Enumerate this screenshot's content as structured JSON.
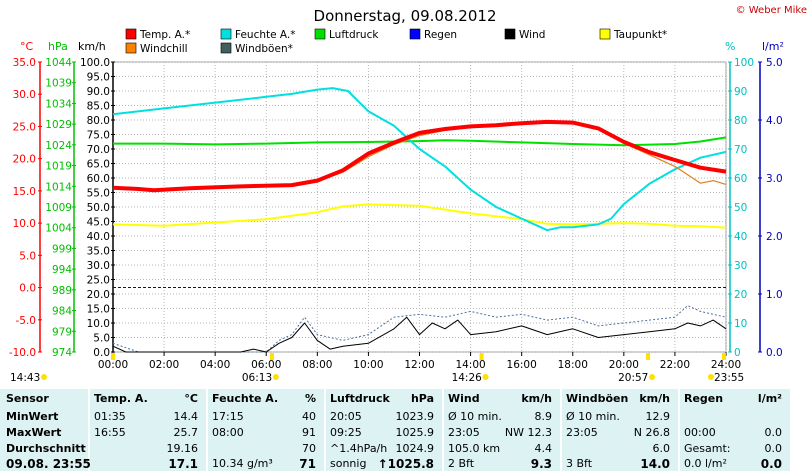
{
  "chart_data": {
    "type": "line",
    "title": "Donnerstag, 09.08.2012",
    "credit": "© Weber Mike",
    "axis_units": {
      "temp": "°C",
      "pressure": "hPa",
      "speed": "km/h",
      "percent": "%",
      "rain": "l/m²"
    },
    "axes": {
      "temp": {
        "range": [
          -10,
          35
        ],
        "ticks": [
          "35.0",
          "30.0",
          "25.0",
          "20.0",
          "15.0",
          "10.0",
          "5.0",
          "0.0",
          "-5.0",
          "-10.0"
        ],
        "color": "#ff0000"
      },
      "pressure": {
        "range": [
          974,
          1044
        ],
        "ticks": [
          "1044",
          "1039",
          "1034",
          "1029",
          "1024",
          "1019",
          "1014",
          "1009",
          "1004",
          "999",
          "994",
          "989",
          "984",
          "979",
          "974"
        ],
        "color": "#00c000"
      },
      "speed": {
        "range": [
          0,
          100
        ],
        "ticks": [
          "100.0",
          "95.0",
          "90.0",
          "85.0",
          "80.0",
          "75.0",
          "70.0",
          "65.0",
          "60.0",
          "55.0",
          "50.0",
          "45.0",
          "40.0",
          "35.0",
          "30.0",
          "25.0",
          "20.0",
          "15.0",
          "10.0",
          "5.0",
          "0.0"
        ],
        "color": "#000000"
      },
      "percent": {
        "range": [
          0,
          100
        ],
        "ticks": [
          "100",
          "90",
          "80",
          "70",
          "60",
          "50",
          "40",
          "30",
          "20",
          "10",
          "0"
        ],
        "color": "#00c0c0"
      },
      "rain": {
        "range": [
          0,
          5
        ],
        "ticks": [
          "5.0",
          "4.0",
          "3.0",
          "2.0",
          "1.0",
          "0.0"
        ],
        "color": "#0000c0"
      }
    },
    "x_ticks": [
      "00:00",
      "02:00",
      "04:00",
      "06:00",
      "08:00",
      "10:00",
      "12:00",
      "14:00",
      "16:00",
      "18:00",
      "20:00",
      "22:00",
      "24:00"
    ],
    "x_range": [
      0,
      24
    ],
    "reference_line": {
      "label": "0 °C",
      "value": 0,
      "color": "#0000c0"
    },
    "markers": [
      {
        "label": "14:43",
        "hour": 0
      },
      {
        "label": "06:13",
        "hour": 6.22
      },
      {
        "label": "14:26",
        "hour": 14.43
      },
      {
        "label": "20:57",
        "hour": 20.95
      },
      {
        "label": "23:55",
        "hour": 23.92
      }
    ],
    "legend": [
      {
        "name": "Temp. A.*",
        "color": "#ff0000"
      },
      {
        "name": "Feuchte A.*",
        "color": "#00e0e0"
      },
      {
        "name": "Luftdruck",
        "color": "#00e000"
      },
      {
        "name": "Regen",
        "color": "#0000ff"
      },
      {
        "name": "Wind",
        "color": "#000000"
      },
      {
        "name": "Taupunkt*",
        "color": "#ffff00"
      },
      {
        "name": "Windchill",
        "color": "#ff8000"
      },
      {
        "name": "Windböen*",
        "color": "#406060"
      }
    ],
    "series": [
      {
        "name": "Temp. A.*",
        "axis": "temp",
        "color": "#ff0000",
        "width": 4,
        "x": [
          0,
          1,
          1.6,
          3,
          5,
          7,
          8,
          9,
          10,
          11,
          12,
          13,
          14,
          15,
          16,
          17,
          18,
          19,
          20,
          21,
          22,
          23,
          24
        ],
        "y": [
          15.5,
          15.3,
          15.1,
          15.4,
          15.7,
          15.9,
          16.6,
          18.2,
          20.8,
          22.5,
          24.0,
          24.6,
          25.0,
          25.2,
          25.5,
          25.7,
          25.6,
          24.7,
          22.6,
          21.0,
          19.8,
          18.6,
          18.0
        ]
      },
      {
        "name": "Windchill",
        "axis": "temp",
        "color": "#e08020",
        "width": 1.2,
        "x": [
          8,
          9,
          10,
          11,
          12,
          13,
          14,
          15,
          16,
          17,
          18,
          19,
          20,
          21,
          22,
          22.5,
          23,
          23.5,
          24
        ],
        "y": [
          16.5,
          17.9,
          20.3,
          22.2,
          23.6,
          24.4,
          24.9,
          25.1,
          25.4,
          25.6,
          25.5,
          24.6,
          22.4,
          20.6,
          18.8,
          17.5,
          16.2,
          16.6,
          16.0
        ]
      },
      {
        "name": "Feuchte A.*",
        "axis": "percent",
        "color": "#00e0e0",
        "width": 2,
        "x": [
          0,
          2,
          4,
          6,
          7,
          8,
          8.6,
          9.2,
          10,
          11,
          12,
          13,
          14,
          15,
          16,
          17,
          17.5,
          18,
          19,
          19.5,
          20,
          21,
          22,
          23,
          24
        ],
        "y": [
          82,
          84,
          86,
          88,
          89,
          90.5,
          91,
          90,
          83,
          78,
          70,
          64,
          56,
          50,
          46,
          42,
          43,
          43,
          44,
          46,
          51,
          58,
          63,
          67,
          69
        ]
      },
      {
        "name": "Luftdruck",
        "axis": "pressure",
        "color": "#00e000",
        "width": 2,
        "x": [
          0,
          2,
          4,
          6,
          8,
          10,
          12,
          13,
          14,
          16,
          18,
          20,
          22,
          23,
          24
        ],
        "y": [
          1024.3,
          1024.3,
          1024.1,
          1024.3,
          1024.6,
          1024.7,
          1024.9,
          1025.1,
          1025.0,
          1024.6,
          1024.2,
          1023.9,
          1024.2,
          1024.8,
          1025.8
        ]
      },
      {
        "name": "Taupunkt*",
        "axis": "temp",
        "color": "#ffff00",
        "width": 2,
        "x": [
          0,
          2,
          4,
          6,
          8,
          9,
          10,
          12,
          14,
          16,
          17,
          18,
          19,
          20,
          21,
          22,
          23,
          24
        ],
        "y": [
          9.8,
          9.6,
          10.1,
          10.6,
          11.7,
          12.6,
          12.9,
          12.7,
          11.5,
          10.6,
          9.9,
          9.8,
          9.9,
          10.0,
          9.9,
          9.6,
          9.5,
          9.3
        ]
      },
      {
        "name": "Wind",
        "axis": "speed",
        "color": "#000000",
        "width": 1,
        "x": [
          0,
          0.5,
          1,
          2,
          3,
          4,
          5,
          5.5,
          6,
          6.5,
          7,
          7.5,
          8,
          8.5,
          9,
          10,
          11,
          11.5,
          12,
          12.5,
          13,
          13.5,
          14,
          15,
          16,
          17,
          18,
          19,
          20,
          21,
          22,
          22.5,
          23,
          23.5,
          24
        ],
        "y": [
          2,
          0,
          0,
          0,
          0,
          0,
          0,
          1,
          0,
          3,
          5,
          10,
          4,
          1,
          2,
          3,
          8,
          12,
          6,
          10,
          8,
          11,
          6,
          7,
          9,
          6,
          8,
          5,
          6,
          7,
          8,
          10,
          9,
          11,
          8
        ]
      },
      {
        "name": "Windböen*",
        "axis": "speed",
        "color": "#5070a0",
        "width": 1,
        "dash": "2,2",
        "x": [
          0,
          1,
          2,
          3,
          4,
          5,
          6,
          6.5,
          7,
          7.5,
          8,
          9,
          10,
          11,
          12,
          13,
          14,
          15,
          16,
          17,
          18,
          19,
          20,
          21,
          22,
          22.5,
          23,
          23.5,
          24
        ],
        "y": [
          3,
          0,
          0,
          0,
          0,
          0,
          0,
          4,
          6,
          12,
          6,
          4,
          6,
          12,
          13,
          12,
          14,
          12,
          13,
          11,
          12,
          9,
          10,
          11,
          12,
          16,
          14,
          13,
          12
        ]
      }
    ]
  },
  "table": {
    "headers": {
      "sensor": "Sensor",
      "temp": "Temp. A.",
      "temp_unit": "°C",
      "feuchte": "Feuchte A.",
      "feuchte_unit": "%",
      "luftdruck": "Luftdruck",
      "luftdruck_unit": "hPa",
      "wind": "Wind",
      "wind_unit": "km/h",
      "windboeen": "Windböen",
      "windboeen_unit": "km/h",
      "regen": "Regen",
      "regen_unit": "l/m²"
    },
    "row_labels": [
      "MinWert",
      "MaxWert",
      "Durchschnitt",
      "09.08.  23:55"
    ],
    "temp": [
      [
        "01:35",
        "14.4"
      ],
      [
        "16:55",
        "25.7"
      ],
      [
        "",
        "19.16"
      ],
      [
        "",
        "17.1"
      ]
    ],
    "feuchte": [
      [
        "17:15",
        "40"
      ],
      [
        "08:00",
        "91"
      ],
      [
        "",
        "70"
      ],
      [
        "10.34 g/m³",
        "71"
      ]
    ],
    "luftdruck": [
      [
        "20:05",
        "1023.9"
      ],
      [
        "09:25",
        "1025.9"
      ],
      [
        "^1.4hPa/h",
        "1024.9"
      ],
      [
        "sonnig",
        "↑1025.8"
      ]
    ],
    "wind": [
      [
        "Ø 10 min.",
        "8.9"
      ],
      [
        "23:05",
        "NW 12.3"
      ],
      [
        "105.0 km",
        "4.4"
      ],
      [
        "2 Bft",
        "9.3"
      ]
    ],
    "windboeen": [
      [
        "Ø 10 min.",
        "12.9"
      ],
      [
        "23:05",
        "N 26.8"
      ],
      [
        "",
        "6.0"
      ],
      [
        "3 Bft",
        "14.0"
      ]
    ],
    "regen": [
      [
        "",
        ""
      ],
      [
        "00:00",
        "0.0"
      ],
      [
        "Gesamt:",
        "0.0"
      ],
      [
        "0.0 l/m²",
        "0.0"
      ]
    ]
  }
}
